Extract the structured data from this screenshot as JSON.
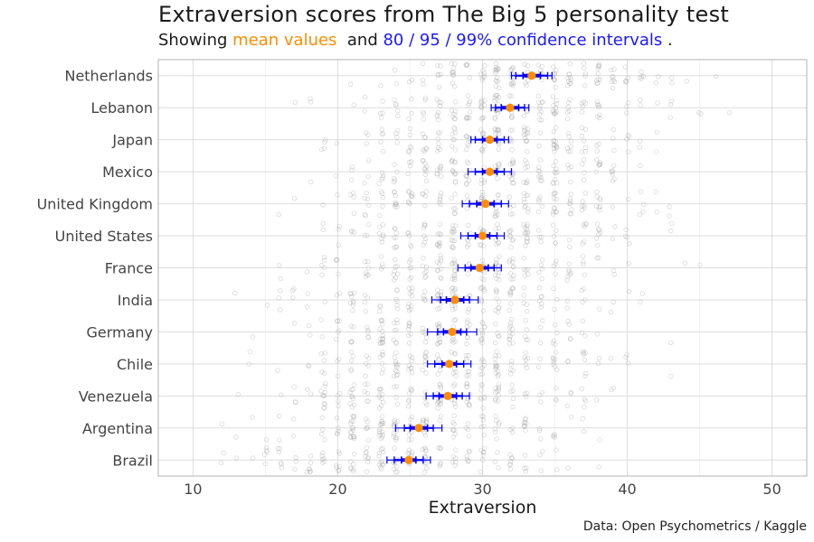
{
  "title": "Extraversion scores from The Big 5 personality test",
  "subtitle": {
    "prefix": "Showing ",
    "mean_label": "mean values",
    "middle": "  and ",
    "ci_label": "80 / 95 / 99% confidence intervals",
    "suffix": " ."
  },
  "caption": "Data: Open Psychometrics / Kaggle",
  "colors": {
    "mean": "#ff8c00",
    "ci": "#0000ff",
    "points": "#aaaaaa",
    "grid": "#dddddd",
    "panel_border": "#b3b3b3"
  },
  "chart_data": {
    "type": "scatter",
    "xlabel": "Extraversion",
    "ylabel": "",
    "xlim": [
      10,
      50
    ],
    "xticks": [
      10,
      20,
      30,
      40,
      50
    ],
    "x_range_shown": [
      7.6,
      52.4
    ],
    "grid": true,
    "categories": [
      "Netherlands",
      "Lebanon",
      "Japan",
      "Mexico",
      "United Kingdom",
      "United States",
      "France",
      "India",
      "Germany",
      "Chile",
      "Venezuela",
      "Argentina",
      "Brazil"
    ],
    "means": [
      33.4,
      31.9,
      30.5,
      30.5,
      30.2,
      30.0,
      29.8,
      28.1,
      27.9,
      27.7,
      27.6,
      25.6,
      24.9
    ],
    "ci80_half": [
      0.6,
      0.6,
      0.5,
      0.5,
      0.6,
      0.5,
      0.6,
      0.6,
      0.6,
      0.5,
      0.6,
      0.6,
      0.5
    ],
    "ci95_half": [
      1.1,
      1.0,
      1.0,
      1.0,
      1.1,
      1.0,
      1.0,
      1.0,
      1.0,
      1.0,
      1.0,
      1.0,
      1.0
    ],
    "ci99_half": [
      1.4,
      1.3,
      1.3,
      1.5,
      1.6,
      1.5,
      1.5,
      1.6,
      1.7,
      1.5,
      1.5,
      1.6,
      1.5
    ],
    "jitter_points_per_category": 140,
    "score_range": [
      10,
      50
    ]
  }
}
